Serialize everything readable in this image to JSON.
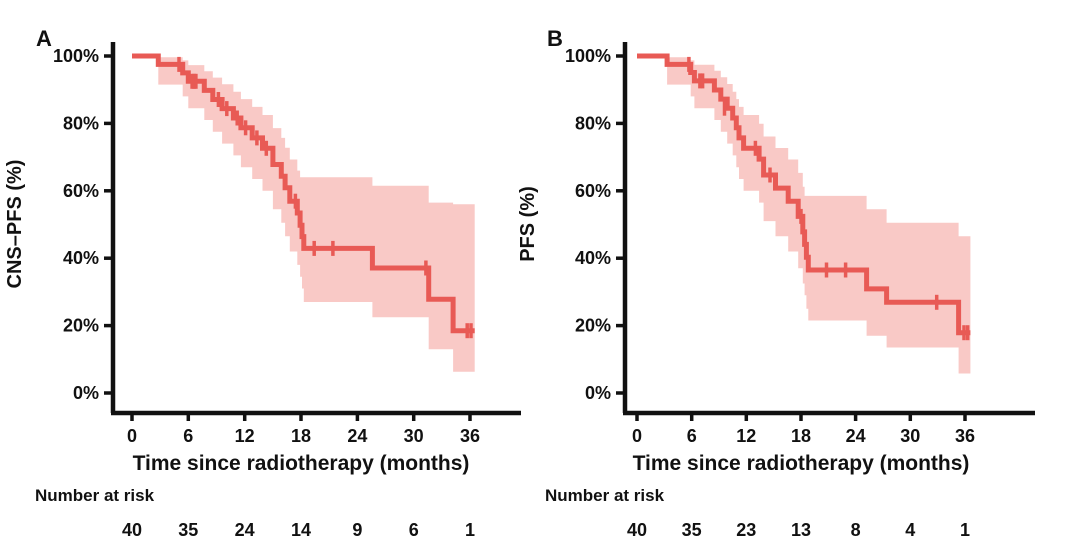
{
  "figure": {
    "background": "#ffffff",
    "curve_color": "#e85a55",
    "band_color": "#f9c9c6",
    "axis_color": "#111111",
    "text_color": "#111111"
  },
  "chart_data": [
    {
      "type": "line",
      "subtype": "kaplan-meier-step",
      "panel_label": "A",
      "title": "",
      "ylabel": "CNS–PFS (%)",
      "xlabel": "Time since radiotherapy (months)",
      "x_tick_labels": [
        "0",
        "6",
        "12",
        "18",
        "24",
        "30",
        "36"
      ],
      "y_tick_labels": [
        "100%",
        "80%",
        "60%",
        "40%",
        "20%",
        "0%"
      ],
      "xlim": [
        0,
        41
      ],
      "ylim": [
        0,
        100
      ],
      "grid": false,
      "legend": "none",
      "start": [
        0,
        100
      ],
      "steps": [
        [
          2.8,
          97.5
        ],
        [
          5.4,
          95.0
        ],
        [
          6.0,
          92.5
        ],
        [
          7.7,
          89.8
        ],
        [
          8.6,
          87.1
        ],
        [
          9.6,
          84.4
        ],
        [
          10.8,
          81.6
        ],
        [
          11.6,
          78.7
        ],
        [
          12.8,
          75.7
        ],
        [
          13.9,
          72.6
        ],
        [
          15.0,
          67.8
        ],
        [
          15.9,
          64.3
        ],
        [
          16.3,
          60.9
        ],
        [
          16.8,
          56.9
        ],
        [
          17.6,
          53.4
        ],
        [
          17.9,
          49.8
        ],
        [
          18.1,
          46.4
        ],
        [
          18.3,
          42.9
        ],
        [
          25.6,
          37.1
        ],
        [
          31.6,
          27.8
        ],
        [
          34.2,
          18.5
        ]
      ],
      "end_time": 36.5,
      "censors": [
        [
          5.0,
          97.5
        ],
        [
          6.4,
          92.5
        ],
        [
          6.6,
          92.5
        ],
        [
          6.8,
          92.5
        ],
        [
          9.2,
          87.1
        ],
        [
          10.1,
          84.4
        ],
        [
          11.2,
          81.6
        ],
        [
          12.1,
          78.7
        ],
        [
          13.3,
          75.7
        ],
        [
          14.3,
          72.6
        ],
        [
          17.4,
          56.9
        ],
        [
          19.4,
          42.9
        ],
        [
          21.4,
          42.9
        ],
        [
          31.3,
          37.1
        ],
        [
          35.7,
          18.5
        ],
        [
          36.1,
          18.5
        ]
      ],
      "band": [
        [
          2.8,
          91.5,
          99.6
        ],
        [
          5.4,
          88.0,
          98.7
        ],
        [
          6.0,
          84.5,
          97.3
        ],
        [
          7.7,
          81.0,
          95.5
        ],
        [
          8.6,
          77.5,
          93.6
        ],
        [
          9.6,
          74.0,
          91.6
        ],
        [
          10.8,
          70.5,
          89.4
        ],
        [
          11.6,
          67.0,
          87.2
        ],
        [
          12.8,
          63.5,
          84.9
        ],
        [
          13.9,
          60.0,
          82.5
        ],
        [
          15.0,
          54.5,
          78.6
        ],
        [
          15.9,
          50.5,
          75.7
        ],
        [
          16.3,
          46.5,
          72.8
        ],
        [
          16.8,
          42.0,
          69.3
        ],
        [
          17.6,
          38.0,
          66.0
        ],
        [
          17.9,
          34.5,
          64.0
        ],
        [
          18.1,
          31.0,
          64.0
        ],
        [
          18.3,
          27.0,
          64.0
        ],
        [
          25.6,
          22.5,
          61.5
        ],
        [
          31.6,
          13.0,
          56.5
        ],
        [
          34.2,
          6.3,
          56.0
        ]
      ],
      "risk_header": "Number at risk",
      "risk_counts": [
        "40",
        "35",
        "24",
        "14",
        "9",
        "6",
        "1"
      ]
    },
    {
      "type": "line",
      "subtype": "kaplan-meier-step",
      "panel_label": "B",
      "title": "",
      "ylabel": "PFS (%)",
      "xlabel": "Time since radiotherapy (months)",
      "x_tick_labels": [
        "0",
        "6",
        "12",
        "18",
        "24",
        "30",
        "36"
      ],
      "y_tick_labels": [
        "100%",
        "80%",
        "60%",
        "40%",
        "20%",
        "0%"
      ],
      "xlim": [
        0,
        41
      ],
      "ylim": [
        0,
        100
      ],
      "grid": false,
      "legend": "none",
      "start": [
        0,
        100
      ],
      "steps": [
        [
          3.3,
          97.5
        ],
        [
          5.9,
          95.1
        ],
        [
          6.3,
          92.6
        ],
        [
          8.5,
          89.9
        ],
        [
          9.2,
          87.2
        ],
        [
          9.9,
          84.5
        ],
        [
          10.5,
          81.6
        ],
        [
          10.9,
          78.7
        ],
        [
          11.2,
          75.7
        ],
        [
          11.7,
          72.6
        ],
        [
          13.4,
          69.4
        ],
        [
          13.9,
          64.7
        ],
        [
          15.2,
          60.8
        ],
        [
          16.6,
          56.9
        ],
        [
          17.7,
          52.4
        ],
        [
          18.2,
          47.8
        ],
        [
          18.4,
          44.1
        ],
        [
          18.6,
          40.3
        ],
        [
          18.8,
          36.5
        ],
        [
          25.2,
          30.9
        ],
        [
          27.4,
          26.9
        ],
        [
          35.3,
          17.9
        ]
      ],
      "end_time": 36.6,
      "censors": [
        [
          5.7,
          97.5
        ],
        [
          6.9,
          92.6
        ],
        [
          7.2,
          92.6
        ],
        [
          9.6,
          84.5
        ],
        [
          13.0,
          72.6
        ],
        [
          14.6,
          64.7
        ],
        [
          18.0,
          52.4
        ],
        [
          20.8,
          36.5
        ],
        [
          22.9,
          36.5
        ],
        [
          32.9,
          26.9
        ],
        [
          35.9,
          17.9
        ],
        [
          36.3,
          17.9
        ]
      ],
      "band": [
        [
          3.3,
          91.5,
          99.6
        ],
        [
          5.9,
          88.0,
          98.7
        ],
        [
          6.3,
          84.5,
          97.4
        ],
        [
          8.5,
          81.0,
          95.6
        ],
        [
          9.2,
          77.5,
          93.7
        ],
        [
          9.9,
          74.0,
          91.7
        ],
        [
          10.5,
          70.5,
          89.4
        ],
        [
          10.9,
          67.0,
          87.2
        ],
        [
          11.2,
          63.5,
          84.9
        ],
        [
          11.7,
          60.0,
          82.5
        ],
        [
          13.4,
          56.5,
          79.9
        ],
        [
          13.9,
          51.0,
          76.1
        ],
        [
          15.2,
          46.5,
          72.7
        ],
        [
          16.6,
          42.0,
          69.3
        ],
        [
          17.7,
          37.0,
          65.3
        ],
        [
          18.2,
          32.5,
          61.2
        ],
        [
          18.4,
          29.0,
          58.5
        ],
        [
          18.6,
          25.0,
          58.5
        ],
        [
          18.8,
          21.5,
          58.5
        ],
        [
          25.2,
          17.0,
          54.5
        ],
        [
          27.4,
          13.5,
          50.5
        ],
        [
          35.3,
          5.8,
          46.5
        ]
      ],
      "risk_header": "Number at risk",
      "risk_counts": [
        "40",
        "35",
        "23",
        "13",
        "8",
        "4",
        "1"
      ]
    }
  ]
}
